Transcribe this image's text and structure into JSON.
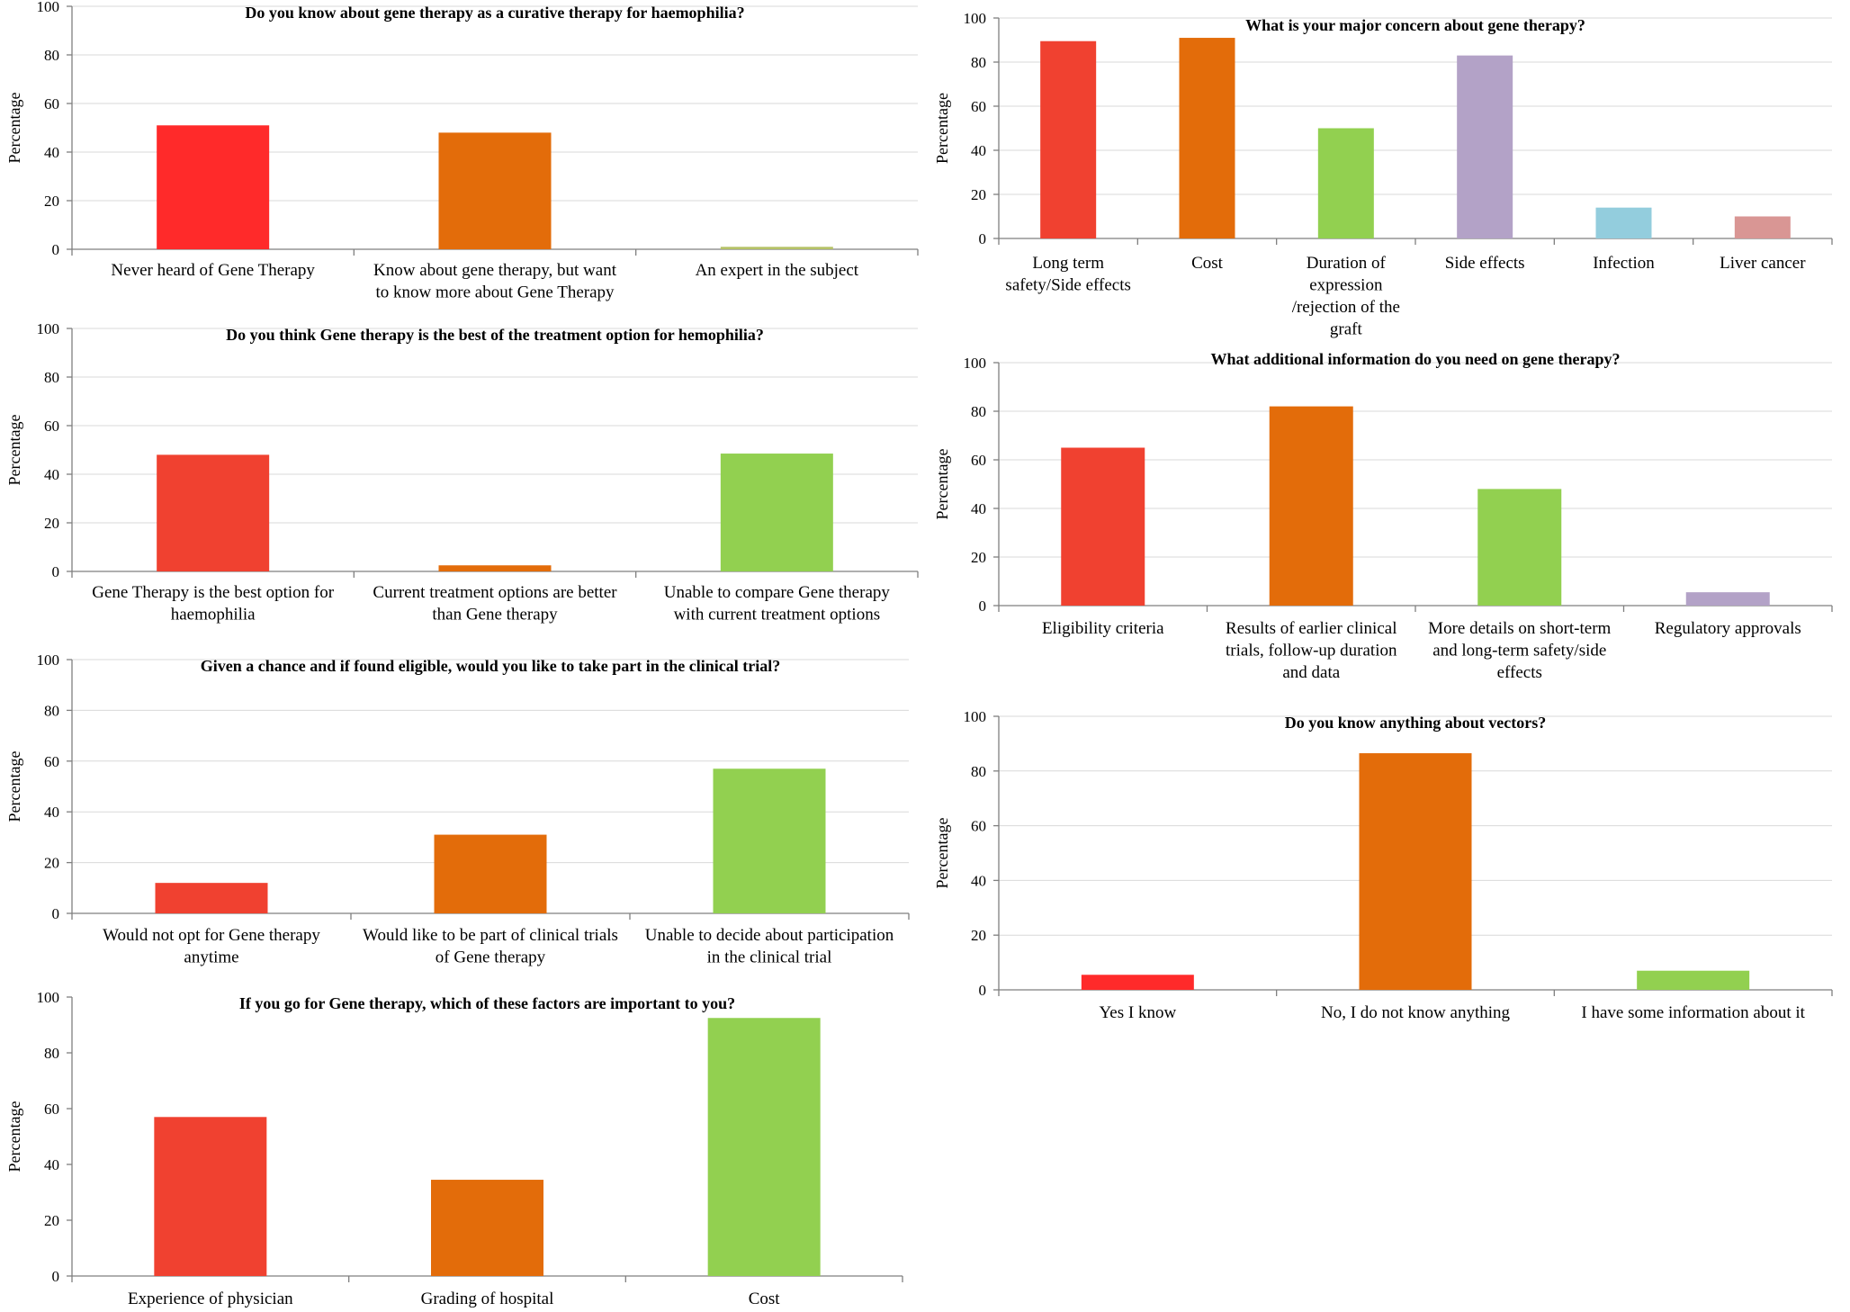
{
  "chart_data": [
    {
      "type": "bar",
      "title": "Do you know about gene therapy as a curative therapy for haemophilia?",
      "ylabel": "Percentage",
      "ylim": [
        0,
        100
      ],
      "yticks": [
        0,
        20,
        40,
        60,
        80,
        100
      ],
      "grid": true,
      "categories": [
        "Never heard of Gene Therapy",
        "Know about gene therapy, but want to know more about Gene Therapy",
        "An expert in the subject"
      ],
      "category_lines": [
        [
          "Never heard of Gene Therapy"
        ],
        [
          "Know about gene therapy, but want",
          "to know more about Gene Therapy"
        ],
        [
          "An expert in the subject"
        ]
      ],
      "values": [
        51,
        48,
        1
      ],
      "colors": [
        "#ff2a2a",
        "#e36c0a",
        "#b5c267"
      ]
    },
    {
      "type": "bar",
      "title": "Do you think Gene therapy is the best of the treatment option for hemophilia?",
      "ylabel": "Percentage",
      "ylim": [
        0,
        100
      ],
      "yticks": [
        0,
        20,
        40,
        60,
        80,
        100
      ],
      "grid": true,
      "categories": [
        "Gene Therapy is the best option for haemophilia",
        "Current treatment options are better than Gene therapy",
        "Unable to compare Gene therapy with current treatment options"
      ],
      "category_lines": [
        [
          "Gene Therapy is the best option for",
          "haemophilia"
        ],
        [
          "Current treatment options are better",
          "than Gene therapy"
        ],
        [
          "Unable to compare Gene therapy",
          "with current treatment options"
        ]
      ],
      "values": [
        48,
        2.5,
        48.5
      ],
      "colors": [
        "#f04130",
        "#e36c0a",
        "#92d050"
      ]
    },
    {
      "type": "bar",
      "title": "Given a chance and if found eligible, would you like to take part in the clinical trial?",
      "ylabel": "Percentage",
      "ylim": [
        0,
        100
      ],
      "yticks": [
        0,
        20,
        40,
        60,
        80,
        100
      ],
      "grid": true,
      "categories": [
        "Would not opt for Gene therapy anytime",
        "Would like to be part of clinical trials of Gene therapy",
        "Unable to decide about participation in the clinical trial"
      ],
      "category_lines": [
        [
          "Would not opt for Gene therapy",
          "anytime"
        ],
        [
          "Would like to be part of clinical trials",
          "of Gene therapy"
        ],
        [
          "Unable to decide about participation",
          "in the clinical trial"
        ]
      ],
      "values": [
        12,
        31,
        57
      ],
      "colors": [
        "#f04130",
        "#e36c0a",
        "#92d050"
      ]
    },
    {
      "type": "bar",
      "title": "If you go for Gene therapy, which of these factors are important to you?",
      "ylabel": "Percentage",
      "ylim": [
        0,
        100
      ],
      "yticks": [
        0,
        20,
        40,
        60,
        80,
        100
      ],
      "grid": false,
      "categories": [
        "Experience of physician",
        "Grading of hospital",
        "Cost"
      ],
      "category_lines": [
        [
          "Experience of physician"
        ],
        [
          "Grading of hospital"
        ],
        [
          "Cost"
        ]
      ],
      "values": [
        57,
        34.5,
        92.5
      ],
      "colors": [
        "#f04130",
        "#e36c0a",
        "#92d050"
      ]
    },
    {
      "type": "bar",
      "title": "What is your major concern about gene therapy?",
      "ylabel": "Percentage",
      "ylim": [
        0,
        100
      ],
      "yticks": [
        0,
        20,
        40,
        60,
        80,
        100
      ],
      "grid": true,
      "categories": [
        "Long term safety/Side effects",
        "Cost",
        "Duration of expression /rejection of the graft",
        "Side effects",
        "Infection",
        "Liver cancer"
      ],
      "category_lines": [
        [
          "Long term",
          "safety/Side effects"
        ],
        [
          "Cost"
        ],
        [
          "Duration of",
          "expression",
          "/rejection of the",
          "graft"
        ],
        [
          "Side effects"
        ],
        [
          "Infection"
        ],
        [
          "Liver cancer"
        ]
      ],
      "values": [
        89.5,
        91,
        50,
        83,
        14,
        10
      ],
      "colors": [
        "#f04130",
        "#e36c0a",
        "#92d050",
        "#b3a2c7",
        "#93cddd",
        "#d99694"
      ]
    },
    {
      "type": "bar",
      "title": "What additional information do you need on gene therapy?",
      "ylabel": "Percentage",
      "ylim": [
        0,
        100
      ],
      "yticks": [
        0,
        20,
        40,
        60,
        80,
        100
      ],
      "grid": true,
      "categories": [
        "Eligibility criteria",
        "Results of earlier clinical trials, follow-up duration and data",
        "More details on short-term and long-term safety/side effects",
        "Regulatory approvals"
      ],
      "category_lines": [
        [
          "Eligibility criteria"
        ],
        [
          "Results of earlier clinical",
          "trials, follow-up duration",
          "and data"
        ],
        [
          "More details on short-term",
          "and long-term safety/side",
          "effects"
        ],
        [
          "Regulatory approvals"
        ]
      ],
      "values": [
        65,
        82,
        48,
        5.5
      ],
      "colors": [
        "#f04130",
        "#e36c0a",
        "#92d050",
        "#b3a2c7"
      ]
    },
    {
      "type": "bar",
      "title": "Do you know anything about vectors?",
      "ylabel": "Percentage",
      "ylim": [
        0,
        100
      ],
      "yticks": [
        0,
        20,
        40,
        60,
        80,
        100
      ],
      "grid": true,
      "categories": [
        "Yes I know",
        "No, I do not know anything",
        "I have some information about it"
      ],
      "category_lines": [
        [
          "Yes I know"
        ],
        [
          "No, I do not know anything"
        ],
        [
          "I have some information about it"
        ]
      ],
      "values": [
        5.5,
        86.5,
        7
      ],
      "colors": [
        "#ff2a2a",
        "#e36c0a",
        "#92d050"
      ]
    }
  ]
}
